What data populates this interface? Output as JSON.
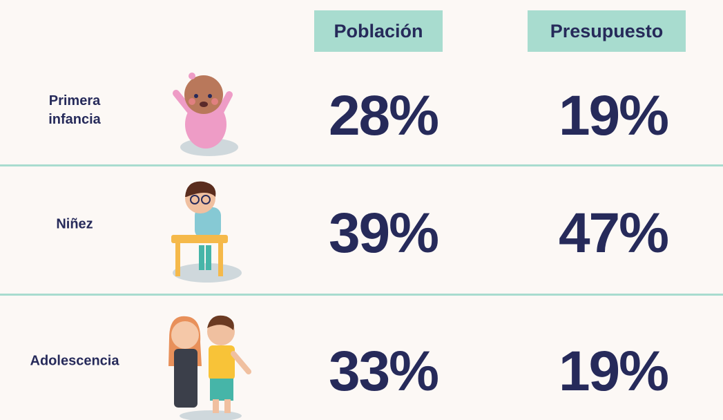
{
  "table": {
    "columns": [
      "Población",
      "Presupuesto"
    ],
    "rows": [
      {
        "label": "Primera infancia",
        "values": [
          "28%",
          "19%"
        ]
      },
      {
        "label": "Niñez",
        "values": [
          "39%",
          "47%"
        ]
      },
      {
        "label": "Adolescencia",
        "values": [
          "33%",
          "19%"
        ]
      }
    ]
  }
}
